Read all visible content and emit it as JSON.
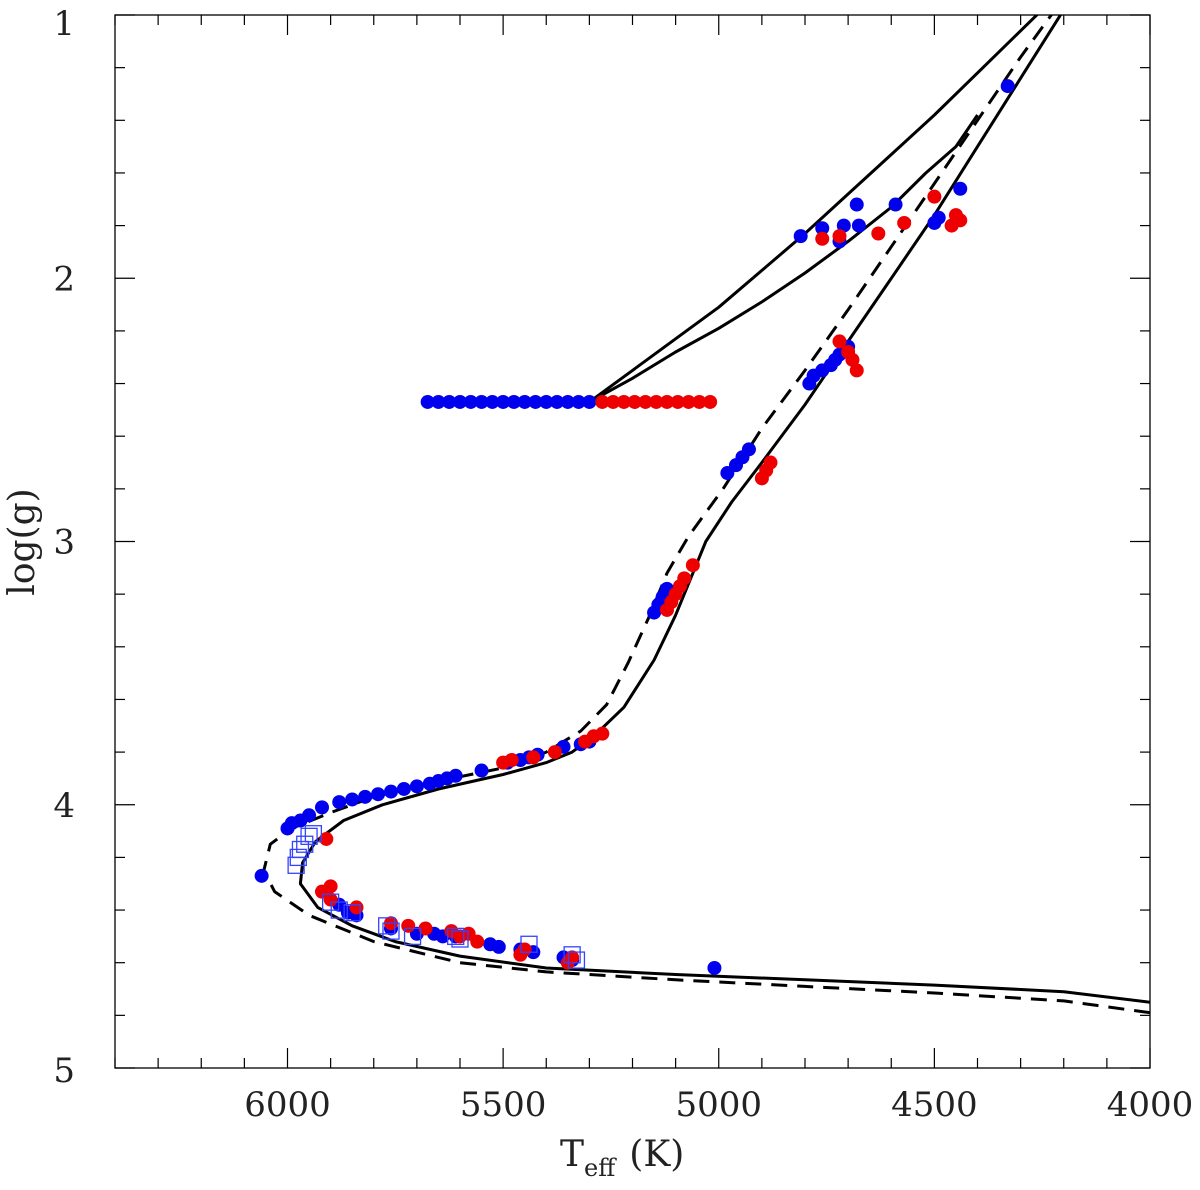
{
  "chart_data": {
    "type": "scatter",
    "title": "",
    "xlabel": "T",
    "xlabel_sub": "eff",
    "xlabel_unit": "(K)",
    "ylabel": "log(g)",
    "xlim": [
      6400,
      4000
    ],
    "ylim": [
      5,
      1
    ],
    "x_reversed": true,
    "y_reversed": true,
    "xticks_major": [
      6000,
      5500,
      5000,
      4500,
      4000
    ],
    "xticks_major_labels": [
      "6000",
      "5500",
      "5000",
      "4500",
      "4000"
    ],
    "xticks_minor_step": 100,
    "yticks_major": [
      1,
      2,
      3,
      4,
      5
    ],
    "yticks_major_labels": [
      "1",
      "2",
      "3",
      "4",
      "5"
    ],
    "yticks_minor_step": 0.2,
    "grid": false,
    "colors": {
      "blue": "#0000ee",
      "red": "#ee0000",
      "line": "#000000",
      "box": "#3344ff"
    },
    "series": [
      {
        "name": "isochrone-solid-main",
        "kind": "line",
        "style": "solid",
        "points": [
          [
            4000,
            4.75
          ],
          [
            4200,
            4.71
          ],
          [
            4500,
            4.685
          ],
          [
            4800,
            4.665
          ],
          [
            5100,
            4.645
          ],
          [
            5400,
            4.62
          ],
          [
            5600,
            4.575
          ],
          [
            5750,
            4.52
          ],
          [
            5850,
            4.46
          ],
          [
            5930,
            4.39
          ],
          [
            5970,
            4.3
          ],
          [
            5965,
            4.22
          ],
          [
            5935,
            4.14
          ],
          [
            5870,
            4.06
          ],
          [
            5780,
            4.0
          ],
          [
            5650,
            3.94
          ],
          [
            5500,
            3.885
          ],
          [
            5400,
            3.84
          ],
          [
            5340,
            3.8
          ],
          [
            5290,
            3.74
          ],
          [
            5220,
            3.63
          ],
          [
            5150,
            3.45
          ],
          [
            5100,
            3.28
          ],
          [
            5060,
            3.12
          ],
          [
            5030,
            3.0
          ],
          [
            4970,
            2.85
          ],
          [
            4900,
            2.7
          ],
          [
            4800,
            2.48
          ],
          [
            4700,
            2.24
          ],
          [
            4600,
            2.0
          ],
          [
            4500,
            1.76
          ],
          [
            4400,
            1.5
          ],
          [
            4300,
            1.24
          ],
          [
            4200,
            0.98
          ],
          [
            4000,
            0.96
          ]
        ]
      },
      {
        "name": "isochrone-dashed-main",
        "kind": "line",
        "style": "dashed",
        "points": [
          [
            4000,
            4.79
          ],
          [
            4200,
            4.745
          ],
          [
            4500,
            4.715
          ],
          [
            4800,
            4.69
          ],
          [
            5100,
            4.665
          ],
          [
            5400,
            4.635
          ],
          [
            5600,
            4.6
          ],
          [
            5800,
            4.52
          ],
          [
            5950,
            4.42
          ],
          [
            6030,
            4.33
          ],
          [
            6055,
            4.25
          ],
          [
            6040,
            4.15
          ],
          [
            5990,
            4.09
          ],
          [
            5900,
            4.03
          ],
          [
            5800,
            3.97
          ],
          [
            5650,
            3.91
          ],
          [
            5500,
            3.86
          ],
          [
            5400,
            3.8
          ],
          [
            5320,
            3.72
          ],
          [
            5260,
            3.62
          ],
          [
            5210,
            3.46
          ],
          [
            5160,
            3.28
          ],
          [
            5120,
            3.12
          ],
          [
            5070,
            2.98
          ],
          [
            4990,
            2.8
          ],
          [
            4900,
            2.57
          ],
          [
            4800,
            2.35
          ],
          [
            4700,
            2.12
          ],
          [
            4600,
            1.88
          ],
          [
            4500,
            1.64
          ],
          [
            4400,
            1.4
          ],
          [
            4300,
            1.16
          ],
          [
            4220,
            0.98
          ],
          [
            4100,
            0.96
          ]
        ]
      },
      {
        "name": "horizontal-branch-upper",
        "kind": "line",
        "style": "solid",
        "points": [
          [
            5300,
            2.47
          ],
          [
            5200,
            2.35
          ],
          [
            5100,
            2.23
          ],
          [
            5000,
            2.11
          ],
          [
            4900,
            1.97
          ],
          [
            4800,
            1.83
          ],
          [
            4700,
            1.68
          ],
          [
            4600,
            1.53
          ],
          [
            4500,
            1.38
          ],
          [
            4400,
            1.22
          ],
          [
            4300,
            1.06
          ],
          [
            4250,
            0.98
          ]
        ]
      },
      {
        "name": "horizontal-branch-lower",
        "kind": "line",
        "style": "solid",
        "points": [
          [
            5300,
            2.47
          ],
          [
            5200,
            2.38
          ],
          [
            5100,
            2.28
          ],
          [
            5000,
            2.19
          ],
          [
            4900,
            2.09
          ],
          [
            4800,
            1.98
          ],
          [
            4700,
            1.86
          ],
          [
            4600,
            1.73
          ],
          [
            4520,
            1.6
          ],
          [
            4450,
            1.5
          ],
          [
            4400,
            1.38
          ]
        ]
      },
      {
        "name": "blue-points",
        "kind": "scatter",
        "marker": "circle",
        "color": "blue",
        "points": [
          [
            4330,
            1.27
          ],
          [
            4440,
            1.66
          ],
          [
            4500,
            1.79
          ],
          [
            4490,
            1.77
          ],
          [
            4590,
            1.72
          ],
          [
            4680,
            1.72
          ],
          [
            4675,
            1.8
          ],
          [
            4710,
            1.8
          ],
          [
            4720,
            1.86
          ],
          [
            4760,
            1.81
          ],
          [
            4810,
            1.84
          ],
          [
            4700,
            2.26
          ],
          [
            4720,
            2.29
          ],
          [
            4730,
            2.31
          ],
          [
            4740,
            2.33
          ],
          [
            4760,
            2.35
          ],
          [
            4780,
            2.37
          ],
          [
            4790,
            2.4
          ],
          [
            4930,
            2.65
          ],
          [
            4945,
            2.68
          ],
          [
            4960,
            2.71
          ],
          [
            4980,
            2.74
          ],
          [
            5120,
            3.18
          ],
          [
            5130,
            3.21
          ],
          [
            5140,
            3.24
          ],
          [
            5150,
            3.27
          ],
          [
            5300,
            2.47
          ],
          [
            5325,
            2.47
          ],
          [
            5350,
            2.47
          ],
          [
            5375,
            2.47
          ],
          [
            5400,
            2.47
          ],
          [
            5425,
            2.47
          ],
          [
            5450,
            2.47
          ],
          [
            5475,
            2.47
          ],
          [
            5500,
            2.47
          ],
          [
            5525,
            2.47
          ],
          [
            5550,
            2.47
          ],
          [
            5575,
            2.47
          ],
          [
            5600,
            2.47
          ],
          [
            5625,
            2.47
          ],
          [
            5650,
            2.47
          ],
          [
            5675,
            2.47
          ],
          [
            5300,
            3.76
          ],
          [
            5320,
            3.77
          ],
          [
            5360,
            3.78
          ],
          [
            5420,
            3.81
          ],
          [
            5440,
            3.82
          ],
          [
            5460,
            3.83
          ],
          [
            5490,
            3.84
          ],
          [
            5550,
            3.87
          ],
          [
            5610,
            3.89
          ],
          [
            5630,
            3.9
          ],
          [
            5650,
            3.91
          ],
          [
            5670,
            3.92
          ],
          [
            5700,
            3.93
          ],
          [
            5730,
            3.94
          ],
          [
            5760,
            3.95
          ],
          [
            5790,
            3.96
          ],
          [
            5820,
            3.97
          ],
          [
            5850,
            3.98
          ],
          [
            5880,
            3.99
          ],
          [
            5920,
            4.01
          ],
          [
            5950,
            4.04
          ],
          [
            5970,
            4.06
          ],
          [
            5990,
            4.07
          ],
          [
            6000,
            4.09
          ],
          [
            6060,
            4.27
          ],
          [
            5880,
            4.38
          ],
          [
            5860,
            4.41
          ],
          [
            5840,
            4.42
          ],
          [
            5760,
            4.47
          ],
          [
            5700,
            4.49
          ],
          [
            5660,
            4.49
          ],
          [
            5640,
            4.5
          ],
          [
            5610,
            4.5
          ],
          [
            5530,
            4.53
          ],
          [
            5510,
            4.54
          ],
          [
            5460,
            4.55
          ],
          [
            5430,
            4.56
          ],
          [
            5360,
            4.58
          ],
          [
            5340,
            4.59
          ],
          [
            5010,
            4.62
          ]
        ]
      },
      {
        "name": "red-points",
        "kind": "scatter",
        "marker": "circle",
        "color": "red",
        "points": [
          [
            4460,
            1.8
          ],
          [
            4440,
            1.78
          ],
          [
            4450,
            1.76
          ],
          [
            4500,
            1.69
          ],
          [
            4570,
            1.79
          ],
          [
            4630,
            1.83
          ],
          [
            4720,
            1.84
          ],
          [
            4760,
            1.85
          ],
          [
            4680,
            2.35
          ],
          [
            4690,
            2.31
          ],
          [
            4700,
            2.28
          ],
          [
            4720,
            2.24
          ],
          [
            4880,
            2.7
          ],
          [
            4890,
            2.73
          ],
          [
            4900,
            2.76
          ],
          [
            5060,
            3.09
          ],
          [
            5080,
            3.14
          ],
          [
            5090,
            3.17
          ],
          [
            5100,
            3.2
          ],
          [
            5110,
            3.23
          ],
          [
            5120,
            3.26
          ],
          [
            5020,
            2.47
          ],
          [
            5045,
            2.47
          ],
          [
            5070,
            2.47
          ],
          [
            5095,
            2.47
          ],
          [
            5120,
            2.47
          ],
          [
            5145,
            2.47
          ],
          [
            5170,
            2.47
          ],
          [
            5195,
            2.47
          ],
          [
            5220,
            2.47
          ],
          [
            5245,
            2.47
          ],
          [
            5270,
            2.47
          ],
          [
            5270,
            3.73
          ],
          [
            5290,
            3.74
          ],
          [
            5310,
            3.76
          ],
          [
            5380,
            3.8
          ],
          [
            5430,
            3.82
          ],
          [
            5480,
            3.83
          ],
          [
            5500,
            3.84
          ],
          [
            5900,
            4.31
          ],
          [
            5910,
            4.13
          ],
          [
            5920,
            4.33
          ],
          [
            5900,
            4.36
          ],
          [
            5840,
            4.39
          ],
          [
            5760,
            4.45
          ],
          [
            5720,
            4.46
          ],
          [
            5680,
            4.47
          ],
          [
            5620,
            4.48
          ],
          [
            5580,
            4.49
          ],
          [
            5600,
            4.5
          ],
          [
            5560,
            4.52
          ],
          [
            5450,
            4.55
          ],
          [
            5460,
            4.57
          ],
          [
            5350,
            4.6
          ],
          [
            5340,
            4.58
          ]
        ]
      },
      {
        "name": "open-squares",
        "kind": "scatter",
        "marker": "square",
        "color": "box",
        "points": [
          [
            5980,
            4.23
          ],
          [
            5975,
            4.2
          ],
          [
            5970,
            4.17
          ],
          [
            5960,
            4.15
          ],
          [
            5950,
            4.12
          ],
          [
            5940,
            4.11
          ],
          [
            5900,
            4.37
          ],
          [
            5880,
            4.4
          ],
          [
            5850,
            4.41
          ],
          [
            5770,
            4.46
          ],
          [
            5760,
            4.48
          ],
          [
            5710,
            4.5
          ],
          [
            5610,
            4.5
          ],
          [
            5600,
            4.51
          ],
          [
            5440,
            4.53
          ],
          [
            5340,
            4.57
          ],
          [
            5330,
            4.59
          ]
        ]
      }
    ]
  }
}
